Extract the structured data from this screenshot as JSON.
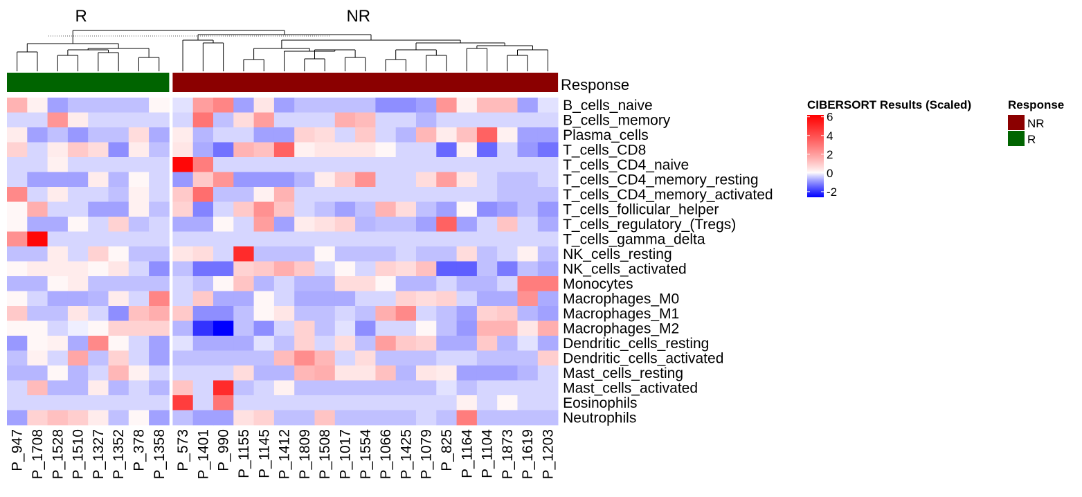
{
  "chart_data": {
    "type": "heatmap",
    "title": "",
    "annotation_name": "Response",
    "groups": [
      {
        "name": "R",
        "color": "#006400",
        "columns": [
          "P_947",
          "P_1708",
          "P_1528",
          "P_1510",
          "P_1327",
          "P_1352",
          "P_378",
          "P_1358"
        ]
      },
      {
        "name": "NR",
        "color": "#8B0000",
        "columns": [
          "P_573",
          "P_1401",
          "P_990",
          "P_1155",
          "P_1145",
          "P_1412",
          "P_1809",
          "P_1508",
          "P_1017",
          "P_1554",
          "P_1066",
          "P_1425",
          "P_1079",
          "P_825",
          "P_1164",
          "P_1104",
          "P_1873",
          "P_1619",
          "P_1203"
        ]
      }
    ],
    "rows": [
      "B_cells_naive",
      "B_cells_memory",
      "Plasma_cells",
      "T_cells_CD8",
      "T_cells_CD4_naive",
      "T_cells_CD4_memory_resting",
      "T_cells_CD4_memory_activated",
      "T_cells_follicular_helper",
      "T_cells_regulatory_(Tregs)",
      "T_cells_gamma_delta",
      "NK_cells_resting",
      "NK_cells_activated",
      "Monocytes",
      "Macrophages_M0",
      "Macrophages_M1",
      "Macrophages_M2",
      "Dendritic_cells_resting",
      "Dendritic_cells_activated",
      "Mast_cells_resting",
      "Mast_cells_activated",
      "Eosinophils",
      "Neutrophils"
    ],
    "values": [
      [
        1.5,
        0.2,
        -0.8,
        -0.5,
        -0.5,
        -0.5,
        -0.5,
        0.1,
        -0.2,
        2.0,
        2.6,
        -0.8,
        0.4,
        -0.8,
        -0.5,
        -0.5,
        -0.5,
        -0.5,
        -1.0,
        -1.0,
        -0.8,
        2.2,
        0.2,
        1.3,
        1.3,
        -0.8,
        -0.2
      ],
      [
        -0.3,
        -0.3,
        2.2,
        0.3,
        -0.3,
        -0.3,
        -0.3,
        -0.3,
        -0.3,
        3.0,
        -0.5,
        0.6,
        2.0,
        -0.3,
        -0.3,
        -0.3,
        1.6,
        1.3,
        -0.3,
        -0.3,
        -0.6,
        -0.3,
        -0.3,
        -0.3,
        -0.3,
        -0.3,
        -0.3
      ],
      [
        0.3,
        -0.8,
        -0.5,
        -0.9,
        -0.5,
        -0.5,
        0.6,
        -0.7,
        0.3,
        -0.6,
        -0.3,
        -0.3,
        -0.8,
        -0.8,
        0.8,
        0.6,
        -0.3,
        1.0,
        -0.3,
        -0.6,
        1.4,
        0.3,
        1.2,
        3.5,
        0.2,
        -0.8,
        -0.8
      ],
      [
        0.8,
        -0.3,
        0.3,
        1.0,
        0.6,
        -1.0,
        0.3,
        -0.5,
        0.4,
        -0.7,
        -1.3,
        1.5,
        1.2,
        3.5,
        0.2,
        0.4,
        0.4,
        0.4,
        0.1,
        -0.3,
        -0.3,
        -1.4,
        0.2,
        -1.4,
        -0.3,
        -0.9,
        -1.3
      ],
      [
        -0.3,
        -0.3,
        0.2,
        -0.3,
        -0.3,
        -0.3,
        -0.3,
        -0.3,
        6.0,
        2.8,
        -0.3,
        -0.3,
        -0.3,
        -0.3,
        -0.3,
        -0.3,
        -0.3,
        -0.3,
        -0.3,
        -0.3,
        -0.3,
        -0.3,
        -0.3,
        -0.3,
        -0.3,
        -0.3,
        -0.3
      ],
      [
        -0.3,
        -0.8,
        -0.8,
        -0.8,
        0.3,
        -0.6,
        0.1,
        -0.3,
        -0.9,
        1.0,
        2.2,
        -0.9,
        -0.9,
        -0.9,
        -0.6,
        0.3,
        1.0,
        2.3,
        -0.3,
        -0.3,
        0.6,
        2.0,
        0.4,
        -0.3,
        -0.5,
        -0.5,
        -0.3
      ],
      [
        2.5,
        -0.3,
        0.3,
        -0.3,
        -0.3,
        -0.5,
        0.2,
        -0.3,
        1.0,
        3.2,
        -0.5,
        -0.5,
        0.2,
        1.5,
        -0.3,
        -0.3,
        -0.3,
        -0.3,
        -0.3,
        -0.3,
        -0.3,
        -0.3,
        -0.3,
        -0.3,
        -0.5,
        -0.5,
        -0.5
      ],
      [
        0.1,
        1.6,
        -0.3,
        -0.3,
        -0.8,
        -0.8,
        0.2,
        -0.5,
        0.8,
        -1.1,
        -0.3,
        1.0,
        2.3,
        1.1,
        -0.3,
        -0.5,
        -0.8,
        -0.5,
        1.5,
        0.6,
        -0.5,
        -0.8,
        0.1,
        -1.0,
        -0.8,
        -0.5,
        -0.9
      ],
      [
        0.1,
        -0.7,
        -0.7,
        0.1,
        -0.3,
        0.8,
        -0.5,
        -0.3,
        -0.7,
        -0.7,
        0.1,
        -0.3,
        2.0,
        -0.8,
        0.3,
        0.5,
        0.8,
        -0.6,
        -0.5,
        -0.5,
        -0.8,
        3.5,
        -0.8,
        -0.3,
        1.1,
        -0.3,
        -0.7
      ],
      [
        2.3,
        6.0,
        -0.3,
        -0.3,
        -0.3,
        -0.3,
        -0.3,
        -0.3,
        -0.3,
        -0.3,
        -0.3,
        -0.3,
        -0.3,
        -0.3,
        -0.3,
        -0.3,
        -0.3,
        -0.3,
        -0.3,
        -0.3,
        -0.3,
        -0.3,
        -0.3,
        -0.3,
        -0.3,
        -0.3,
        -0.3
      ],
      [
        -0.5,
        -0.5,
        0.3,
        -0.3,
        0.8,
        0.1,
        -0.5,
        -0.5,
        0.4,
        0.6,
        -0.3,
        5.0,
        -0.5,
        -0.5,
        -0.5,
        0.1,
        -0.5,
        -0.5,
        -0.5,
        -0.3,
        -0.5,
        -0.5,
        0.6,
        -0.5,
        -0.3,
        0.2,
        -0.5
      ],
      [
        0.1,
        0.3,
        0.3,
        0.3,
        0.1,
        0.4,
        -0.3,
        -1.0,
        -0.5,
        -1.3,
        -1.3,
        0.8,
        1.0,
        1.6,
        1.0,
        -0.3,
        0.1,
        -0.3,
        0.8,
        0.6,
        1.2,
        -1.5,
        -1.5,
        -0.5,
        -1.2,
        -0.5,
        -0.7
      ],
      [
        -0.6,
        -0.6,
        0.1,
        0.3,
        -0.5,
        -0.5,
        -0.5,
        -0.5,
        -0.3,
        -0.5,
        0.1,
        1.1,
        -0.6,
        -0.3,
        -0.6,
        -0.6,
        0.6,
        0.6,
        0.1,
        -0.6,
        -0.6,
        -0.3,
        -0.6,
        -0.6,
        -0.3,
        2.8,
        2.8
      ],
      [
        0.1,
        -0.3,
        -0.7,
        -0.7,
        -0.6,
        0.3,
        -0.3,
        2.6,
        -0.3,
        1.0,
        -0.7,
        -0.7,
        0.1,
        -0.3,
        -0.7,
        -0.7,
        -0.7,
        -0.3,
        -0.3,
        0.8,
        0.6,
        0.8,
        -0.3,
        -0.7,
        -0.7,
        2.3,
        -0.7
      ],
      [
        1.0,
        -0.5,
        -0.5,
        0.4,
        -0.3,
        -1.0,
        1.2,
        1.6,
        1.0,
        -1.0,
        -1.0,
        -0.5,
        0.1,
        0.4,
        -0.5,
        -0.5,
        -0.3,
        -0.5,
        1.6,
        2.5,
        -0.3,
        -0.5,
        -0.8,
        0.8,
        1.0,
        -0.6,
        -0.8
      ],
      [
        0.1,
        0.1,
        -0.3,
        -0.1,
        0.1,
        0.8,
        0.8,
        0.8,
        -0.6,
        -2.0,
        -2.6,
        -0.5,
        -1.0,
        -0.3,
        0.8,
        -0.5,
        -0.2,
        -1.0,
        -0.3,
        -0.3,
        0.1,
        -0.5,
        -0.9,
        1.5,
        1.5,
        0.4,
        1.6
      ],
      [
        -0.9,
        0.1,
        0.2,
        -0.7,
        2.5,
        0.1,
        -0.3,
        -0.8,
        -0.2,
        -0.7,
        -0.7,
        -0.7,
        -0.2,
        -0.5,
        0.8,
        -0.3,
        0.6,
        -0.5,
        2.0,
        1.0,
        0.8,
        -0.7,
        -0.7,
        1.0,
        -0.6,
        -0.2,
        -0.7
      ],
      [
        -0.5,
        0.2,
        -0.3,
        1.8,
        -0.5,
        0.8,
        -0.3,
        -0.8,
        -0.5,
        -0.5,
        -0.5,
        -0.5,
        -0.5,
        1.3,
        2.4,
        1.4,
        -0.3,
        0.6,
        -0.5,
        -0.5,
        -0.5,
        -0.3,
        -0.3,
        -0.5,
        -0.5,
        -0.5,
        0.9
      ],
      [
        -0.6,
        -0.6,
        0.1,
        -0.6,
        -0.3,
        1.4,
        0.2,
        -0.3,
        -0.3,
        -0.3,
        -0.3,
        0.6,
        -0.6,
        -0.6,
        1.4,
        1.6,
        0.4,
        0.4,
        1.2,
        -0.6,
        0.4,
        0.3,
        -0.8,
        -0.8,
        -0.8,
        -0.6,
        -0.3
      ],
      [
        -0.3,
        1.3,
        -0.6,
        -0.6,
        0.3,
        -0.6,
        -0.3,
        -0.6,
        1.1,
        -0.3,
        5.0,
        -0.5,
        -0.3,
        0.2,
        -0.5,
        -0.5,
        -0.5,
        -0.5,
        -0.5,
        -0.5,
        -0.5,
        -0.2,
        -0.5,
        -0.3,
        -0.3,
        -0.3,
        -0.3
      ],
      [
        -0.3,
        -0.3,
        -0.3,
        -0.3,
        -0.3,
        -0.3,
        -0.3,
        -0.3,
        4.5,
        -0.3,
        3.0,
        -0.3,
        -0.3,
        -0.3,
        -0.3,
        -0.3,
        -0.3,
        -0.3,
        -0.3,
        -0.3,
        -0.3,
        -0.3,
        0.2,
        -0.3,
        0.1,
        -0.3,
        -0.3
      ],
      [
        -0.8,
        0.8,
        1.2,
        0.9,
        0.3,
        -0.5,
        0.1,
        -0.8,
        -0.5,
        -0.8,
        -0.8,
        0.5,
        0.8,
        -0.5,
        -0.5,
        1.1,
        -0.5,
        -0.5,
        -0.5,
        -0.5,
        -0.3,
        -0.5,
        2.8,
        -0.5,
        -0.5,
        -0.5,
        -0.5
      ]
    ],
    "legend": {
      "title": "CIBERSORT Results (Scaled)",
      "ticks": [
        6,
        4,
        2,
        0,
        -2
      ],
      "range": [
        -2.6,
        6.2
      ],
      "low_color": "#0000FF",
      "mid_color": "#FFFFFF",
      "high_color": "#FF0000"
    },
    "response_legend": {
      "title": "Response",
      "items": [
        {
          "label": "NR",
          "color": "#8B0000"
        },
        {
          "label": "R",
          "color": "#006400"
        }
      ]
    }
  }
}
